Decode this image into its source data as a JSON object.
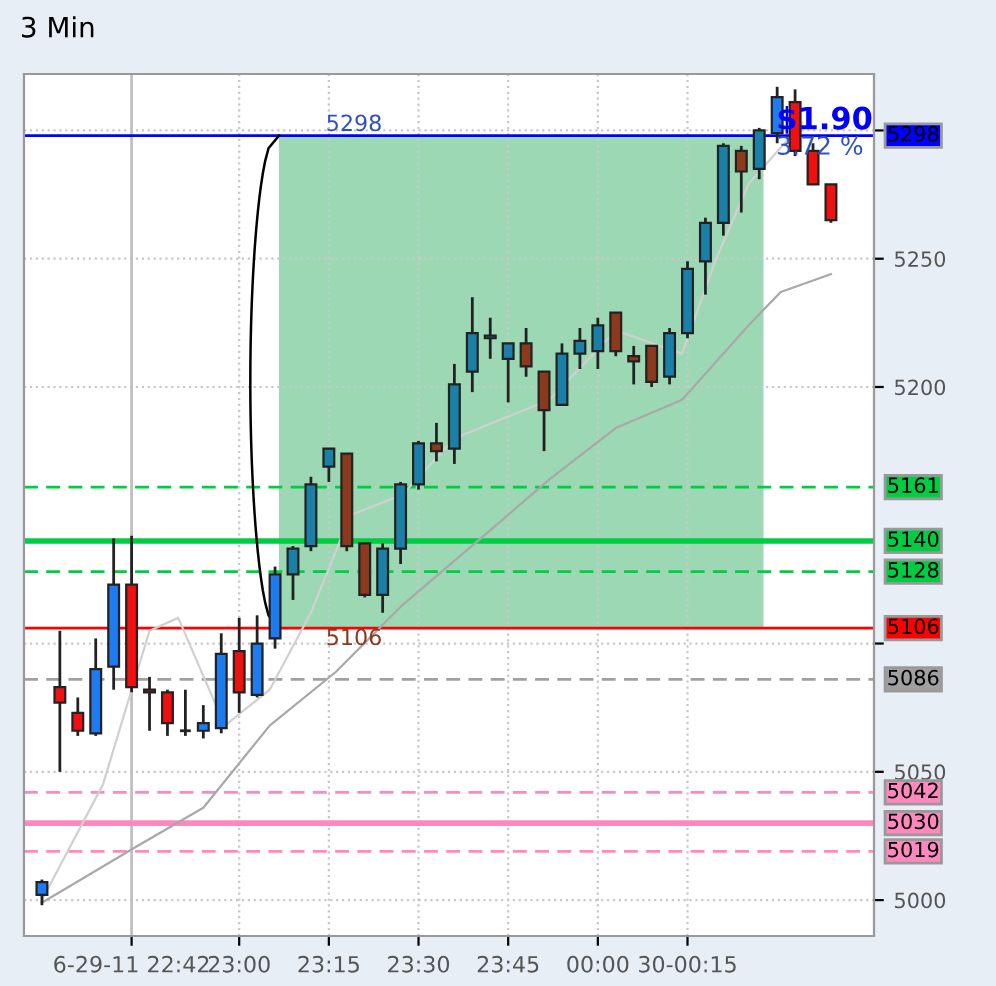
{
  "chart_data": {
    "type": "candlestick",
    "title": "3 Min",
    "x": [
      22.45,
      22.5,
      22.55,
      22.6,
      22.65,
      22.7,
      22.75,
      22.8,
      22.85,
      22.9,
      22.95,
      23.0,
      23.05,
      23.1,
      23.15,
      23.2,
      23.25,
      23.3,
      23.35,
      23.4,
      23.45,
      23.5,
      23.55,
      23.6,
      23.65,
      23.7,
      23.75,
      23.8,
      23.85,
      23.9,
      23.95,
      24.0,
      24.05,
      24.1,
      24.15,
      24.2,
      24.25,
      24.3,
      24.35,
      24.4,
      24.45,
      24.5,
      24.55,
      24.6,
      24.65
    ],
    "ohlc": [
      [
        5002,
        5008,
        4998,
        5007
      ],
      [
        5083,
        5105,
        5050,
        5077
      ],
      [
        5073,
        5079,
        5064,
        5066
      ],
      [
        5065,
        5102,
        5064,
        5090
      ],
      [
        5091,
        5141,
        5082,
        5123
      ],
      [
        5123,
        5142,
        5081,
        5083
      ],
      [
        5082,
        5087,
        5066,
        5081
      ],
      [
        5081,
        5082,
        5064,
        5069
      ],
      [
        5066,
        5082,
        5064,
        5066
      ],
      [
        5066,
        5076,
        5063,
        5069
      ],
      [
        5067,
        5104,
        5065,
        5096
      ],
      [
        5097,
        5110,
        5073,
        5081
      ],
      [
        5080,
        5111,
        5079,
        5100
      ],
      [
        5102,
        5130,
        5098,
        5127
      ],
      [
        5127,
        5138,
        5117,
        5137
      ],
      [
        5138,
        5165,
        5136,
        5162
      ],
      [
        5169,
        5176,
        5163,
        5176
      ],
      [
        5174,
        5174,
        5136,
        5138
      ],
      [
        5139,
        5139,
        5118,
        5119
      ],
      [
        5119,
        5139,
        5112,
        5137
      ],
      [
        5137,
        5163,
        5131,
        5162
      ],
      [
        5162,
        5179,
        5160,
        5178
      ],
      [
        5178,
        5186,
        5171,
        5175
      ],
      [
        5176,
        5209,
        5170,
        5201
      ],
      [
        5206,
        5235,
        5198,
        5221
      ],
      [
        5219,
        5227,
        5211,
        5220
      ],
      [
        5211,
        5217,
        5194,
        5217
      ],
      [
        5217,
        5223,
        5204,
        5208
      ],
      [
        5206,
        5206,
        5175,
        5191
      ],
      [
        5193,
        5217,
        5193,
        5213
      ],
      [
        5213,
        5223,
        5207,
        5218
      ],
      [
        5214,
        5227,
        5207,
        5224
      ],
      [
        5229,
        5229,
        5212,
        5214
      ],
      [
        5212,
        5216,
        5201,
        5210
      ],
      [
        5216,
        5216,
        5200,
        5202
      ],
      [
        5204,
        5223,
        5201,
        5221
      ],
      [
        5221,
        5249,
        5219,
        5246
      ],
      [
        5249,
        5266,
        5236,
        5264
      ],
      [
        5264,
        5295,
        5259,
        5294
      ],
      [
        5292,
        5294,
        5268,
        5284
      ],
      [
        5285,
        5301,
        5281,
        5300
      ],
      [
        5299,
        5317,
        5295,
        5313
      ],
      [
        5311,
        5316,
        5290,
        5292
      ],
      [
        5292,
        5295,
        5279,
        5279
      ],
      [
        5279,
        5279,
        5264,
        5265
      ]
    ],
    "colors": [
      "#1e7bf0",
      "#f01010",
      "#f01010",
      "#1e7bf0",
      "#1e7bf0",
      "#f01010",
      "#f01010",
      "#f01010",
      "#222222",
      "#1e7bf0",
      "#1e7bf0",
      "#f01010",
      "#1e7bf0",
      "#1e7bf0",
      "#1a80a8",
      "#1a80a8",
      "#1a80a8",
      "#8b3a1e",
      "#8b3a1e",
      "#1a80a8",
      "#1a80a8",
      "#1a80a8",
      "#8b3a1e",
      "#1a80a8",
      "#1a80a8",
      "#1a80a8",
      "#1a80a8",
      "#8b3a1e",
      "#8b3a1e",
      "#1a80a8",
      "#1a80a8",
      "#1a80a8",
      "#8b3a1e",
      "#8b3a1e",
      "#8b3a1e",
      "#1a80a8",
      "#1a80a8",
      "#1a80a8",
      "#1a80a8",
      "#8b3a1e",
      "#1a80a8",
      "#1e7bf0",
      "#f01010",
      "#f01010",
      "#f01010"
    ],
    "series": [
      {
        "type": "line",
        "color": "#d0d0d0",
        "x": [
          22.45,
          22.62,
          22.75,
          22.83,
          22.96,
          23.085,
          23.2,
          23.31,
          23.455,
          23.6,
          23.865,
          24.05,
          24.235,
          24.33,
          24.42,
          24.57
        ],
        "values": [
          5000,
          5045,
          5105,
          5110,
          5068,
          5082,
          5112,
          5150,
          5158,
          5180,
          5195,
          5222,
          5213,
          5250,
          5279,
          5303
        ]
      },
      {
        "type": "line",
        "color": "#a8a8a8",
        "x": [
          22.45,
          22.715,
          22.9,
          23.085,
          23.27,
          23.455,
          23.64,
          23.865,
          24.05,
          24.235,
          24.42,
          24.51,
          24.65
        ],
        "values": [
          4999,
          5021,
          5036,
          5068,
          5089,
          5115,
          5137,
          5164,
          5184,
          5195,
          5224,
          5237,
          5244
        ]
      }
    ],
    "xlim": [
      22.4,
      24.77
    ],
    "ylim": [
      4986,
      5322
    ],
    "xticks": [
      {
        "value": 22.7,
        "label": "6-29-11 22:42"
      },
      {
        "value": 23.0,
        "label": "23:00"
      },
      {
        "value": 23.25,
        "label": "23:15"
      },
      {
        "value": 23.5,
        "label": "23:30"
      },
      {
        "value": 23.75,
        "label": "23:45"
      },
      {
        "value": 24.0,
        "label": "00:00"
      },
      {
        "value": 24.25,
        "label": "30-00:15"
      }
    ],
    "yticks": [
      5000,
      5050,
      {
        "value": 5100,
        "label": null
      },
      5200,
      5250,
      {
        "value": 5300,
        "label": null
      }
    ],
    "grid": true,
    "ref_lines": [
      {
        "axis": "x",
        "value": 22.7,
        "label": null,
        "color": "#c0c0c0",
        "line_style": "solid"
      },
      {
        "axis": "y",
        "value": 5298,
        "label": "5298",
        "color": "#0000ff",
        "line_style": "solid"
      },
      {
        "axis": "y",
        "value": 5161,
        "label": "5161",
        "color": "#00cc44",
        "line_style": "dashed"
      },
      {
        "axis": "y",
        "value": 5140,
        "label": "5140",
        "color": "#00cc44",
        "line_style": "solid"
      },
      {
        "axis": "y",
        "value": 5128,
        "label": "5128",
        "color": "#00cc44",
        "line_style": "dashed"
      },
      {
        "axis": "y",
        "value": 5106,
        "label": "5106",
        "color": "#ff0000",
        "line_style": "solid"
      },
      {
        "axis": "y",
        "value": 5086,
        "label": "5086",
        "color": "#a0a0a0",
        "line_style": "dashed"
      },
      {
        "axis": "y",
        "value": 5042,
        "label": "5042",
        "color": "#ff88c0",
        "line_style": "dashed"
      },
      {
        "axis": "y",
        "value": 5030,
        "label": "5030",
        "color": "#ff88c0",
        "line_style": "solid"
      },
      {
        "axis": "y",
        "value": 5019,
        "label": "5019",
        "color": "#ff88c0",
        "line_style": "dashed"
      }
    ],
    "bands": [
      {
        "axis": "y",
        "from": 5106,
        "to": 5298,
        "color": "#9dd8b4",
        "label": null
      }
    ],
    "annotations": [
      "5298",
      "5106",
      "$1.90",
      "3.72 %"
    ]
  }
}
